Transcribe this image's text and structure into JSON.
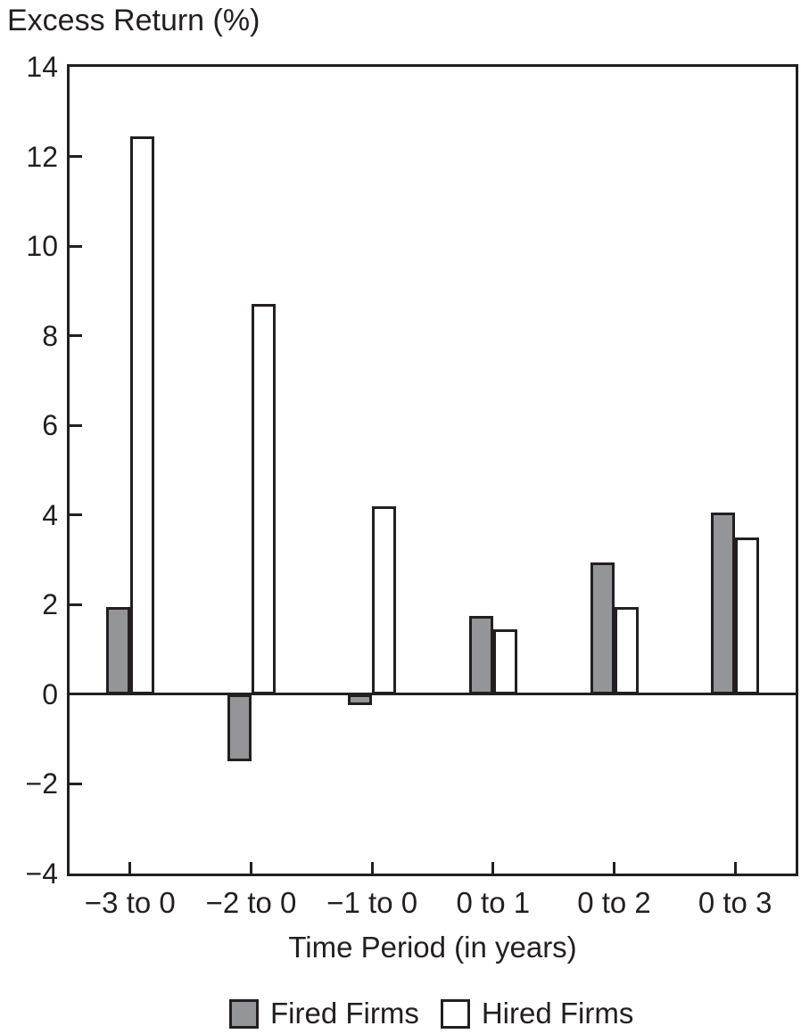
{
  "figure_title": "Excess Return (%)",
  "chart_data": {
    "type": "bar",
    "title": "Excess Return (%)",
    "xlabel": "Time Period (in years)",
    "ylabel": "Excess Return (%)",
    "categories": [
      "−3 to 0",
      "−2 to 0",
      "−1 to 0",
      "0 to 1",
      "0 to 2",
      "0 to 3"
    ],
    "series": [
      {
        "name": "Fired Firms",
        "color": "#939598",
        "values": [
          1.95,
          -1.5,
          -0.25,
          1.75,
          2.95,
          4.05
        ]
      },
      {
        "name": "Hired Firms",
        "color": "#ffffff",
        "values": [
          12.45,
          8.7,
          4.2,
          1.45,
          1.95,
          3.5
        ]
      }
    ],
    "ylim": [
      -4,
      14
    ],
    "ytick_step": 2,
    "ytick_labels": [
      "14",
      "12",
      "10",
      "8",
      "6",
      "4",
      "2",
      "0",
      "−2",
      "−4"
    ],
    "grid": false,
    "zero_line": true,
    "legend_position": "bottom",
    "ink_color": "#231f20",
    "plot_background": "#ffffff"
  }
}
